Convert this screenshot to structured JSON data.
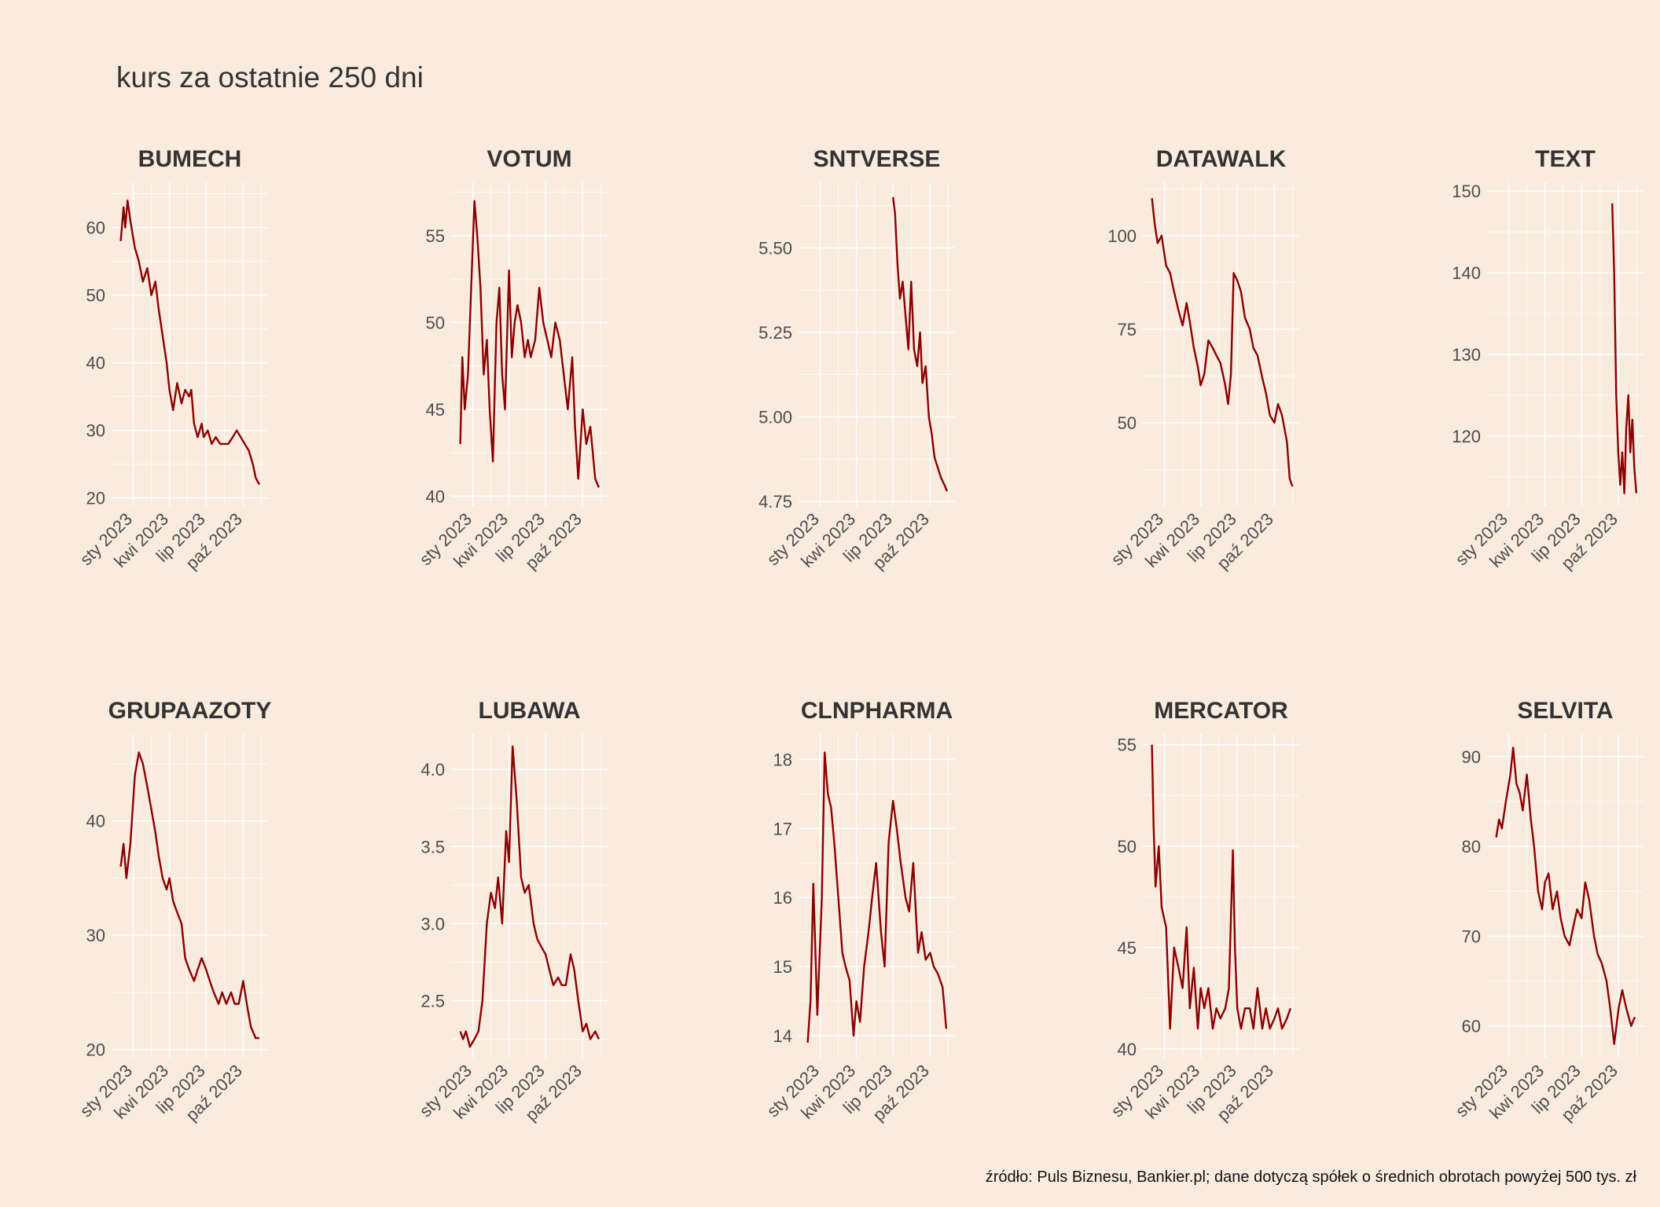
{
  "title": "kurs za ostatnie 250 dni",
  "caption": "źródło: Puls Biznesu, Bankier.pl; dane dotyczą spółek o średnich obrotach powyżej 500 tys. zł",
  "line_color": "#8b0000",
  "background_color": "#faebdf",
  "chart_data": [
    {
      "type": "line",
      "title": "BUMECH",
      "x_ticks": [
        "sty 2023",
        "kwi 2023",
        "lip 2023",
        "paź 2023"
      ],
      "y_ticks": [
        "20",
        "30",
        "40",
        "50",
        "60"
      ],
      "ylim": [
        19.5,
        66
      ],
      "xlim": [
        "2022-11-20",
        "2023-11-20"
      ],
      "grid": true,
      "series": [
        {
          "x": [
            "2022-12-01",
            "2022-12-08",
            "2022-12-12",
            "2022-12-18",
            "2022-12-25",
            "2023-01-05",
            "2023-01-15",
            "2023-01-25",
            "2023-02-05",
            "2023-02-15",
            "2023-02-25",
            "2023-03-05",
            "2023-03-15",
            "2023-03-25",
            "2023-04-01",
            "2023-04-10",
            "2023-04-20",
            "2023-05-01",
            "2023-05-10",
            "2023-05-20",
            "2023-05-25",
            "2023-06-01",
            "2023-06-10",
            "2023-06-20",
            "2023-06-25",
            "2023-07-05",
            "2023-07-15",
            "2023-07-25",
            "2023-08-05",
            "2023-08-15",
            "2023-08-25",
            "2023-09-05",
            "2023-09-15",
            "2023-09-25",
            "2023-10-05",
            "2023-10-15",
            "2023-10-25",
            "2023-11-01",
            "2023-11-10"
          ],
          "y": [
            58,
            63,
            60,
            64,
            61,
            57,
            55,
            52,
            54,
            50,
            52,
            48,
            44,
            40,
            36,
            33,
            37,
            34,
            36,
            35,
            36,
            31,
            29,
            31,
            29,
            30,
            28,
            29,
            28,
            28,
            28,
            29,
            30,
            29,
            28,
            27,
            25,
            23,
            22
          ]
        }
      ]
    },
    {
      "type": "line",
      "title": "VOTUM",
      "x_ticks": [
        "sty 2023",
        "kwi 2023",
        "lip 2023",
        "paź 2023"
      ],
      "y_ticks": [
        "40",
        "45",
        "50",
        "55"
      ],
      "ylim": [
        39.7,
        57.8
      ],
      "xlim": [
        "2022-11-20",
        "2023-11-20"
      ],
      "grid": true,
      "series": [
        {
          "x": [
            "2022-12-01",
            "2022-12-06",
            "2022-12-12",
            "2022-12-20",
            "2022-12-28",
            "2023-01-05",
            "2023-01-12",
            "2023-01-20",
            "2023-01-28",
            "2023-02-05",
            "2023-02-12",
            "2023-02-20",
            "2023-03-01",
            "2023-03-08",
            "2023-03-15",
            "2023-03-22",
            "2023-04-01",
            "2023-04-08",
            "2023-04-15",
            "2023-04-22",
            "2023-05-01",
            "2023-05-10",
            "2023-05-18",
            "2023-05-25",
            "2023-06-05",
            "2023-06-15",
            "2023-06-25",
            "2023-07-05",
            "2023-07-15",
            "2023-07-25",
            "2023-08-05",
            "2023-08-15",
            "2023-08-25",
            "2023-09-05",
            "2023-09-12",
            "2023-09-20",
            "2023-10-01",
            "2023-10-10",
            "2023-10-20",
            "2023-11-01",
            "2023-11-10"
          ],
          "y": [
            43,
            48,
            45,
            47,
            52,
            57,
            55,
            52,
            47,
            49,
            45,
            42,
            50,
            52,
            47,
            45,
            53,
            48,
            50,
            51,
            50,
            48,
            49,
            48,
            49,
            52,
            50,
            49,
            48,
            50,
            49,
            47,
            45,
            48,
            44,
            41,
            45,
            43,
            44,
            41,
            40.5
          ]
        }
      ]
    },
    {
      "type": "line",
      "title": "SNTVERSE",
      "x_ticks": [
        "sty 2023",
        "kwi 2023",
        "lip 2023",
        "paź 2023"
      ],
      "y_ticks": [
        "4.75",
        "5.00",
        "5.25",
        "5.50"
      ],
      "ylim": [
        4.75,
        5.68
      ],
      "xlim": [
        "2022-11-20",
        "2023-11-20"
      ],
      "grid": true,
      "series": [
        {
          "x": [
            "2023-07-01",
            "2023-07-06",
            "2023-07-12",
            "2023-07-18",
            "2023-07-25",
            "2023-08-01",
            "2023-08-08",
            "2023-08-15",
            "2023-08-22",
            "2023-08-30",
            "2023-09-06",
            "2023-09-12",
            "2023-09-20",
            "2023-09-28",
            "2023-10-05",
            "2023-10-12",
            "2023-10-20",
            "2023-10-28",
            "2023-11-05",
            "2023-11-12"
          ],
          "y": [
            5.65,
            5.6,
            5.45,
            5.35,
            5.4,
            5.3,
            5.2,
            5.4,
            5.2,
            5.15,
            5.25,
            5.1,
            5.15,
            5.0,
            4.95,
            4.88,
            4.85,
            4.82,
            4.8,
            4.78
          ]
        }
      ]
    },
    {
      "type": "line",
      "title": "DATAWALK",
      "x_ticks": [
        "sty 2023",
        "kwi 2023",
        "lip 2023",
        "paź 2023"
      ],
      "y_ticks": [
        "50",
        "75",
        "100"
      ],
      "ylim": [
        29,
        113
      ],
      "xlim": [
        "2022-11-20",
        "2023-11-20"
      ],
      "grid": true,
      "series": [
        {
          "x": [
            "2022-12-01",
            "2022-12-08",
            "2022-12-15",
            "2022-12-25",
            "2023-01-05",
            "2023-01-15",
            "2023-01-25",
            "2023-02-05",
            "2023-02-15",
            "2023-02-25",
            "2023-03-05",
            "2023-03-15",
            "2023-03-25",
            "2023-04-01",
            "2023-04-10",
            "2023-04-20",
            "2023-05-01",
            "2023-05-10",
            "2023-05-20",
            "2023-06-01",
            "2023-06-08",
            "2023-06-15",
            "2023-06-22",
            "2023-07-01",
            "2023-07-10",
            "2023-07-20",
            "2023-08-01",
            "2023-08-10",
            "2023-08-20",
            "2023-09-01",
            "2023-09-10",
            "2023-09-20",
            "2023-10-01",
            "2023-10-10",
            "2023-10-20",
            "2023-11-01",
            "2023-11-08",
            "2023-11-15"
          ],
          "y": [
            110,
            103,
            98,
            100,
            92,
            90,
            85,
            80,
            76,
            82,
            77,
            70,
            65,
            60,
            63,
            72,
            70,
            68,
            66,
            60,
            55,
            63,
            90,
            88,
            85,
            78,
            75,
            70,
            68,
            62,
            58,
            52,
            50,
            55,
            52,
            45,
            35,
            33
          ]
        }
      ]
    },
    {
      "type": "line",
      "title": "TEXT",
      "x_ticks": [
        "sty 2023",
        "kwi 2023",
        "lip 2023",
        "paź 2023"
      ],
      "y_ticks": [
        "120",
        "130",
        "140",
        "150"
      ],
      "ylim": [
        112,
        150.5
      ],
      "xlim": [
        "2022-11-20",
        "2023-11-20"
      ],
      "grid": true,
      "series": [
        {
          "x": [
            "2023-09-15",
            "2023-09-20",
            "2023-09-25",
            "2023-09-30",
            "2023-10-05",
            "2023-10-10",
            "2023-10-15",
            "2023-10-20",
            "2023-10-25",
            "2023-10-30",
            "2023-11-04",
            "2023-11-09",
            "2023-11-14"
          ],
          "y": [
            148.5,
            140,
            125,
            118,
            114,
            118,
            113,
            121,
            125,
            118,
            122,
            116,
            113
          ]
        }
      ]
    },
    {
      "type": "line",
      "title": "GRUPAAZOTY",
      "x_ticks": [
        "sty 2023",
        "kwi 2023",
        "lip 2023",
        "paź 2023"
      ],
      "y_ticks": [
        "20",
        "30",
        "40"
      ],
      "ylim": [
        19.7,
        47.2
      ],
      "xlim": [
        "2022-11-20",
        "2023-11-20"
      ],
      "grid": true,
      "series": [
        {
          "x": [
            "2022-12-01",
            "2022-12-08",
            "2022-12-15",
            "2022-12-25",
            "2023-01-05",
            "2023-01-15",
            "2023-01-25",
            "2023-02-05",
            "2023-02-15",
            "2023-02-25",
            "2023-03-05",
            "2023-03-15",
            "2023-03-25",
            "2023-04-01",
            "2023-04-10",
            "2023-04-20",
            "2023-05-01",
            "2023-05-10",
            "2023-05-20",
            "2023-06-01",
            "2023-06-10",
            "2023-06-20",
            "2023-07-01",
            "2023-07-10",
            "2023-07-20",
            "2023-08-01",
            "2023-08-10",
            "2023-08-20",
            "2023-09-01",
            "2023-09-10",
            "2023-09-20",
            "2023-10-01",
            "2023-10-10",
            "2023-10-20",
            "2023-11-01",
            "2023-11-10"
          ],
          "y": [
            36,
            38,
            35,
            38,
            44,
            46,
            45,
            43,
            41,
            39,
            37,
            35,
            34,
            35,
            33,
            32,
            31,
            28,
            27,
            26,
            27,
            28,
            27,
            26,
            25,
            24,
            25,
            24,
            25,
            24,
            24,
            26,
            24,
            22,
            21,
            21
          ]
        }
      ]
    },
    {
      "type": "line",
      "title": "LUBAWA",
      "x_ticks": [
        "sty 2023",
        "kwi 2023",
        "lip 2023",
        "paź 2023"
      ],
      "y_ticks": [
        "2.5",
        "3.0",
        "3.5",
        "4.0"
      ],
      "ylim": [
        2.16,
        4.2
      ],
      "xlim": [
        "2022-11-20",
        "2023-11-20"
      ],
      "grid": true,
      "series": [
        {
          "x": [
            "2022-12-01",
            "2022-12-08",
            "2022-12-15",
            "2022-12-25",
            "2023-01-05",
            "2023-01-15",
            "2023-01-25",
            "2023-02-05",
            "2023-02-15",
            "2023-02-25",
            "2023-03-05",
            "2023-03-15",
            "2023-03-25",
            "2023-04-01",
            "2023-04-10",
            "2023-04-20",
            "2023-05-01",
            "2023-05-10",
            "2023-05-20",
            "2023-06-01",
            "2023-06-10",
            "2023-06-20",
            "2023-07-01",
            "2023-07-10",
            "2023-07-20",
            "2023-08-01",
            "2023-08-10",
            "2023-08-20",
            "2023-09-01",
            "2023-09-10",
            "2023-09-20",
            "2023-10-01",
            "2023-10-10",
            "2023-10-20",
            "2023-11-01",
            "2023-11-10"
          ],
          "y": [
            2.3,
            2.25,
            2.3,
            2.2,
            2.25,
            2.3,
            2.5,
            3.0,
            3.2,
            3.1,
            3.3,
            3.0,
            3.6,
            3.4,
            4.15,
            3.8,
            3.3,
            3.2,
            3.25,
            3.0,
            2.9,
            2.85,
            2.8,
            2.7,
            2.6,
            2.65,
            2.6,
            2.6,
            2.8,
            2.7,
            2.5,
            2.3,
            2.35,
            2.25,
            2.3,
            2.25
          ]
        }
      ]
    },
    {
      "type": "line",
      "title": "CLNPHARMA",
      "x_ticks": [
        "sty 2023",
        "kwi 2023",
        "lip 2023",
        "paź 2023"
      ],
      "y_ticks": [
        "14",
        "15",
        "16",
        "17",
        "18"
      ],
      "ylim": [
        13.75,
        18.3
      ],
      "xlim": [
        "2022-11-20",
        "2023-11-20"
      ],
      "grid": true,
      "series": [
        {
          "x": [
            "2022-12-01",
            "2022-12-08",
            "2022-12-15",
            "2022-12-25",
            "2023-01-05",
            "2023-01-12",
            "2023-01-20",
            "2023-01-28",
            "2023-02-05",
            "2023-02-15",
            "2023-02-25",
            "2023-03-05",
            "2023-03-15",
            "2023-03-25",
            "2023-04-01",
            "2023-04-10",
            "2023-04-20",
            "2023-05-01",
            "2023-05-10",
            "2023-05-20",
            "2023-06-01",
            "2023-06-10",
            "2023-06-20",
            "2023-07-01",
            "2023-07-10",
            "2023-07-20",
            "2023-08-01",
            "2023-08-10",
            "2023-08-20",
            "2023-09-01",
            "2023-09-10",
            "2023-09-20",
            "2023-10-01",
            "2023-10-10",
            "2023-10-20",
            "2023-11-01",
            "2023-11-10"
          ],
          "y": [
            13.9,
            14.5,
            16.2,
            14.3,
            16.0,
            18.1,
            17.5,
            17.3,
            16.8,
            16.0,
            15.2,
            15.0,
            14.8,
            14.0,
            14.5,
            14.2,
            15.0,
            15.5,
            16.0,
            16.5,
            15.5,
            15.0,
            16.8,
            17.4,
            17.0,
            16.5,
            16.0,
            15.8,
            16.5,
            15.2,
            15.5,
            15.1,
            15.2,
            15.0,
            14.9,
            14.7,
            14.1
          ]
        }
      ]
    },
    {
      "type": "line",
      "title": "MERCATOR",
      "x_ticks": [
        "sty 2023",
        "kwi 2023",
        "lip 2023",
        "paź 2023"
      ],
      "y_ticks": [
        "40",
        "45",
        "50",
        "55"
      ],
      "ylim": [
        39.8,
        55.3
      ],
      "xlim": [
        "2022-11-20",
        "2023-11-20"
      ],
      "grid": true,
      "series": [
        {
          "x": [
            "2022-12-01",
            "2022-12-05",
            "2022-12-10",
            "2022-12-18",
            "2022-12-25",
            "2023-01-05",
            "2023-01-15",
            "2023-01-25",
            "2023-02-05",
            "2023-02-15",
            "2023-02-25",
            "2023-03-05",
            "2023-03-15",
            "2023-03-25",
            "2023-04-01",
            "2023-04-10",
            "2023-04-20",
            "2023-05-01",
            "2023-05-10",
            "2023-05-20",
            "2023-06-01",
            "2023-06-10",
            "2023-06-20",
            "2023-06-25",
            "2023-07-01",
            "2023-07-10",
            "2023-07-20",
            "2023-08-01",
            "2023-08-10",
            "2023-08-20",
            "2023-09-01",
            "2023-09-10",
            "2023-09-20",
            "2023-10-01",
            "2023-10-10",
            "2023-10-20",
            "2023-11-01",
            "2023-11-10"
          ],
          "y": [
            55,
            51,
            48,
            50,
            47,
            46,
            41,
            45,
            44,
            43,
            46,
            42,
            44,
            41,
            43,
            42,
            43,
            41,
            42,
            41.5,
            42,
            43,
            49.8,
            45,
            42,
            41,
            42,
            42,
            41,
            43,
            41,
            42,
            41,
            41.5,
            42,
            41,
            41.5,
            42
          ]
        }
      ]
    },
    {
      "type": "line",
      "title": "SELVITA",
      "x_ticks": [
        "sty 2023",
        "kwi 2023",
        "lip 2023",
        "paź 2023"
      ],
      "y_ticks": [
        "60",
        "70",
        "80",
        "90"
      ],
      "ylim": [
        57,
        92
      ],
      "xlim": [
        "2022-11-20",
        "2023-11-20"
      ],
      "grid": true,
      "series": [
        {
          "x": [
            "2022-12-01",
            "2022-12-08",
            "2022-12-15",
            "2022-12-25",
            "2023-01-05",
            "2023-01-12",
            "2023-01-20",
            "2023-01-28",
            "2023-02-05",
            "2023-02-15",
            "2023-02-25",
            "2023-03-05",
            "2023-03-15",
            "2023-03-25",
            "2023-04-01",
            "2023-04-10",
            "2023-04-20",
            "2023-05-01",
            "2023-05-10",
            "2023-05-20",
            "2023-06-01",
            "2023-06-10",
            "2023-06-20",
            "2023-07-01",
            "2023-07-10",
            "2023-07-20",
            "2023-08-01",
            "2023-08-10",
            "2023-08-20",
            "2023-09-01",
            "2023-09-10",
            "2023-09-20",
            "2023-10-01",
            "2023-10-10",
            "2023-10-20",
            "2023-11-01",
            "2023-11-10"
          ],
          "y": [
            81,
            83,
            82,
            85,
            88,
            91,
            87,
            86,
            84,
            88,
            83,
            80,
            75,
            73,
            76,
            77,
            73,
            75,
            72,
            70,
            69,
            71,
            73,
            72,
            76,
            74,
            70,
            68,
            67,
            65,
            62,
            58,
            62,
            64,
            62,
            60,
            61
          ]
        }
      ]
    }
  ]
}
